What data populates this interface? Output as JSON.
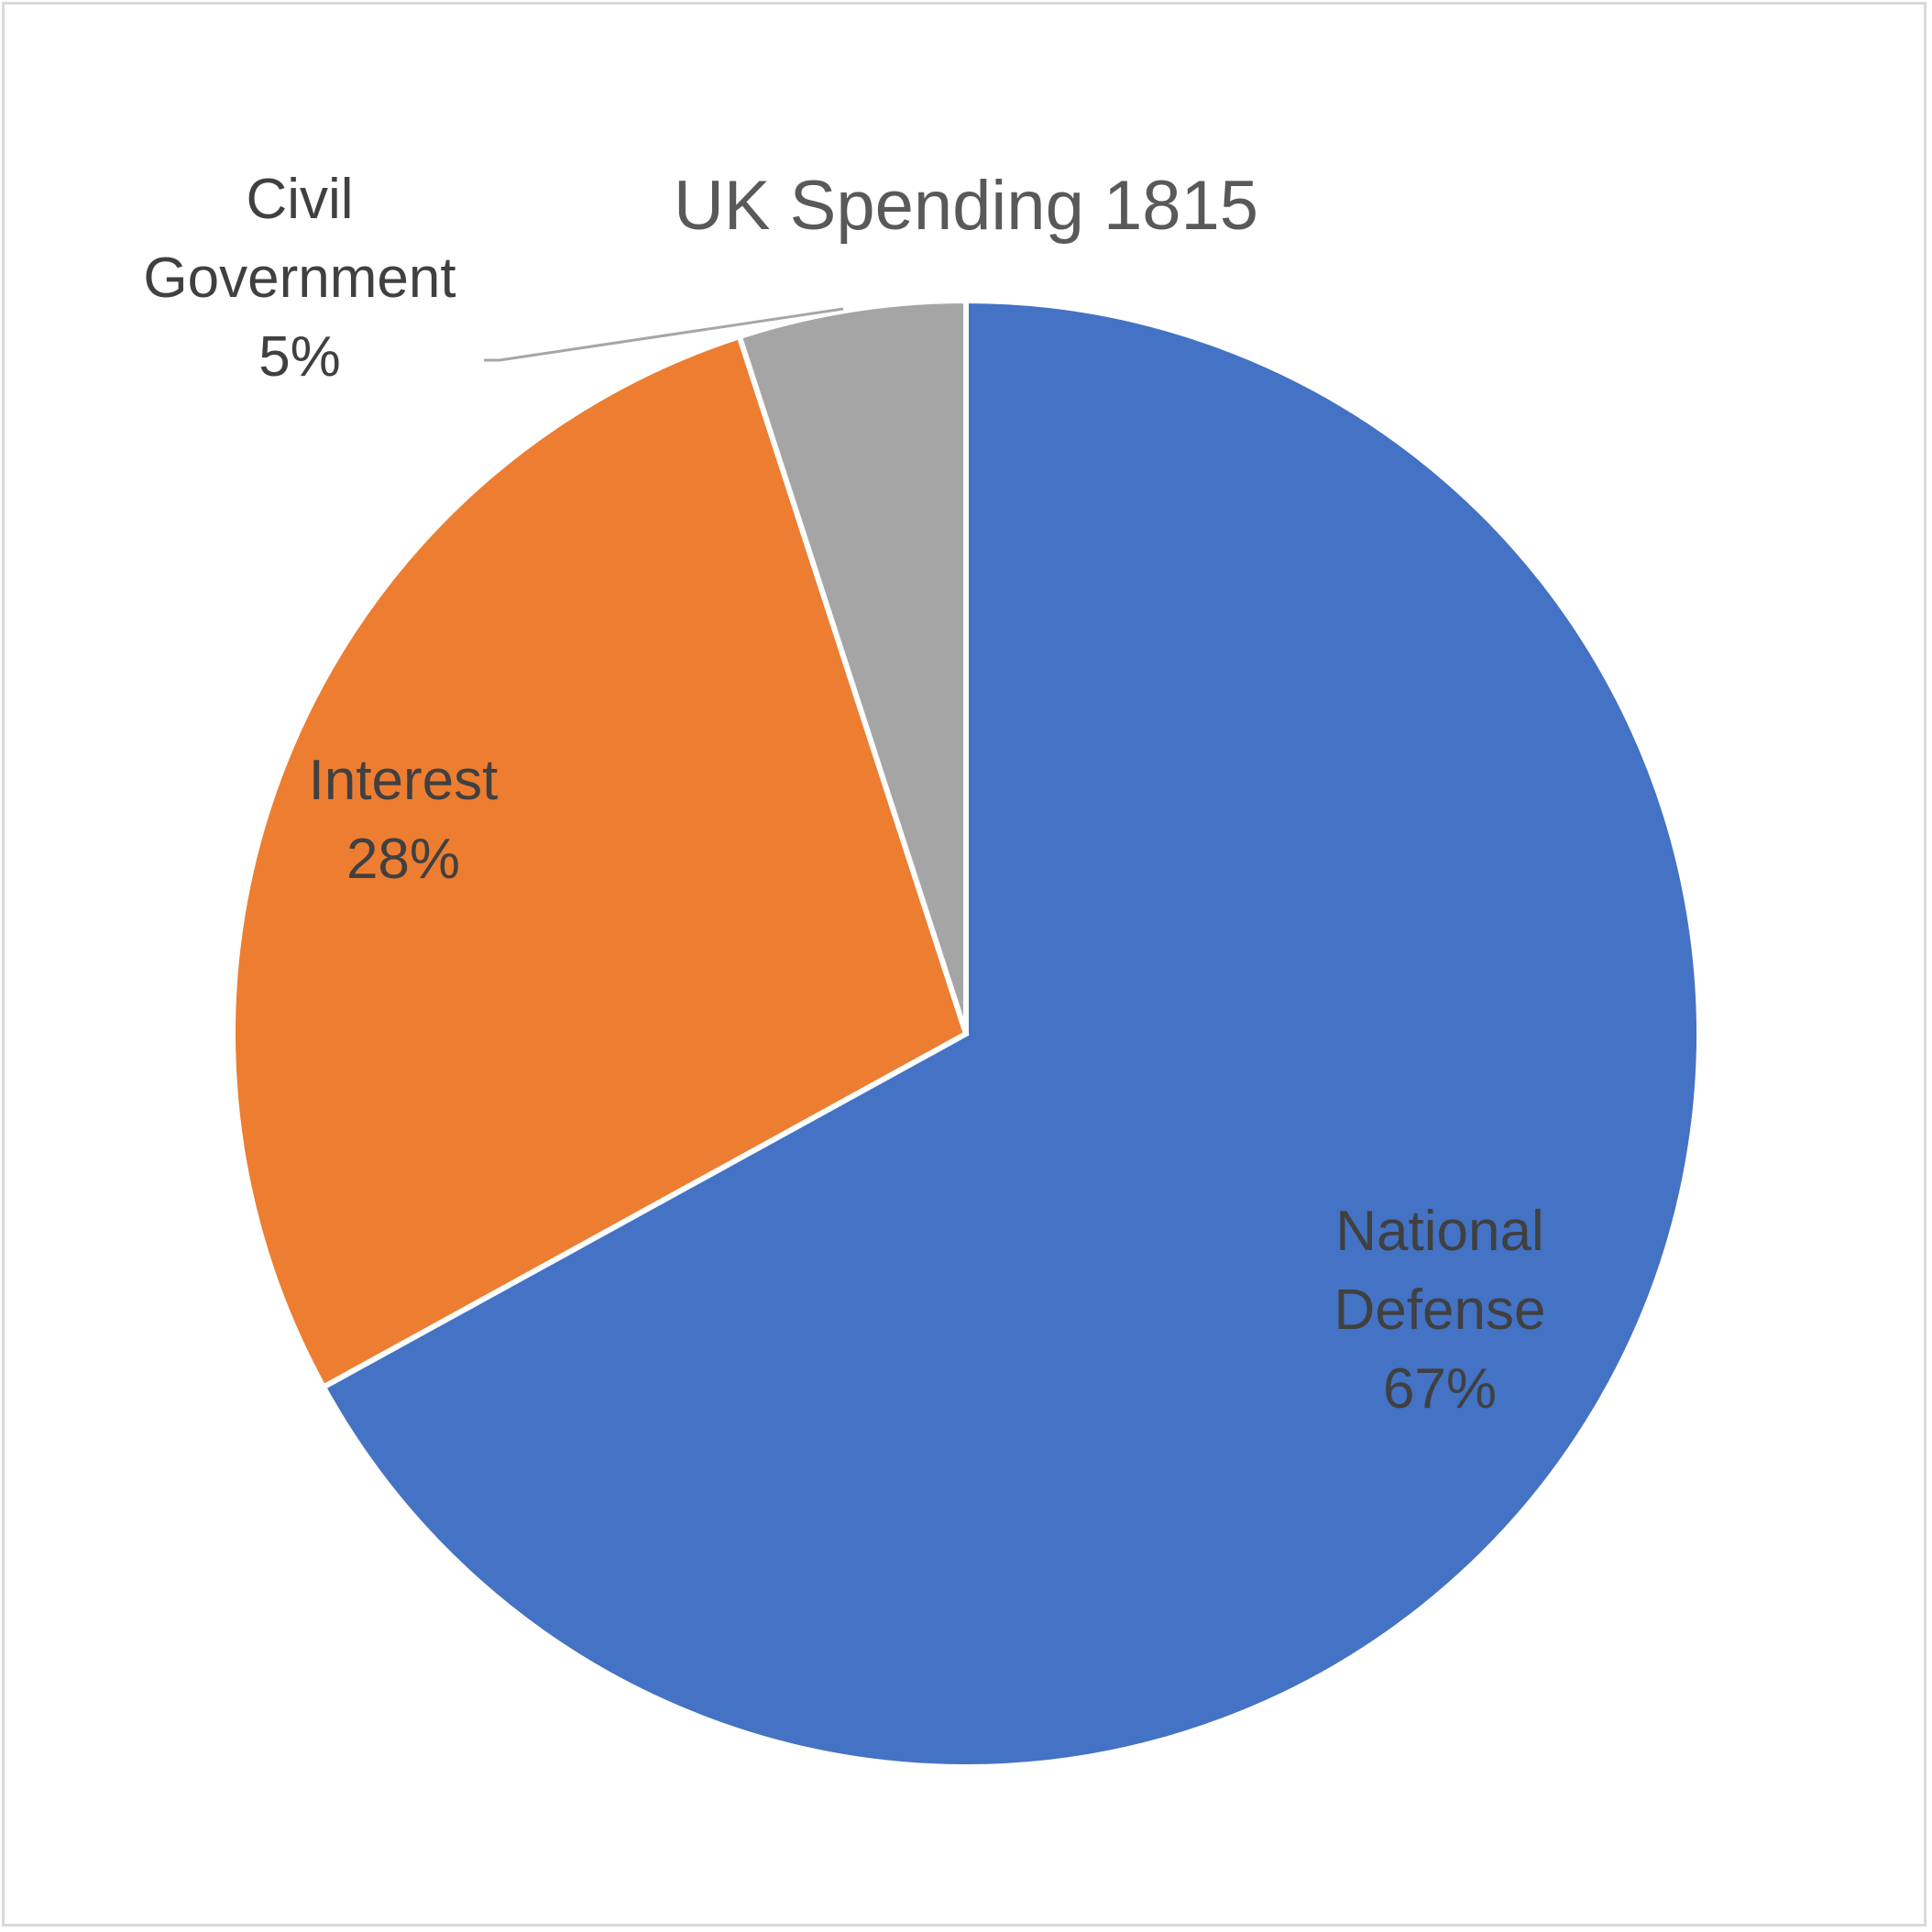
{
  "chart_data": {
    "type": "pie",
    "title": "UK Spending 1815",
    "slices": [
      {
        "category": "National Defense",
        "label_lines": [
          "National",
          "Defense"
        ],
        "value": 67,
        "percent_label": "67%",
        "color": "#4472C4"
      },
      {
        "category": "Interest",
        "label_lines": [
          "Interest"
        ],
        "value": 28,
        "percent_label": "28%",
        "color": "#ED7D31"
      },
      {
        "category": "Civil Government",
        "label_lines": [
          "Civil",
          "Government"
        ],
        "value": 5,
        "percent_label": "5%",
        "color": "#A5A5A5"
      }
    ],
    "start_angle": "12 o'clock",
    "direction": "clockwise",
    "legend": "none",
    "slice_border_color": "#FFFFFF",
    "leader_line_color": "#A6A6A6"
  }
}
